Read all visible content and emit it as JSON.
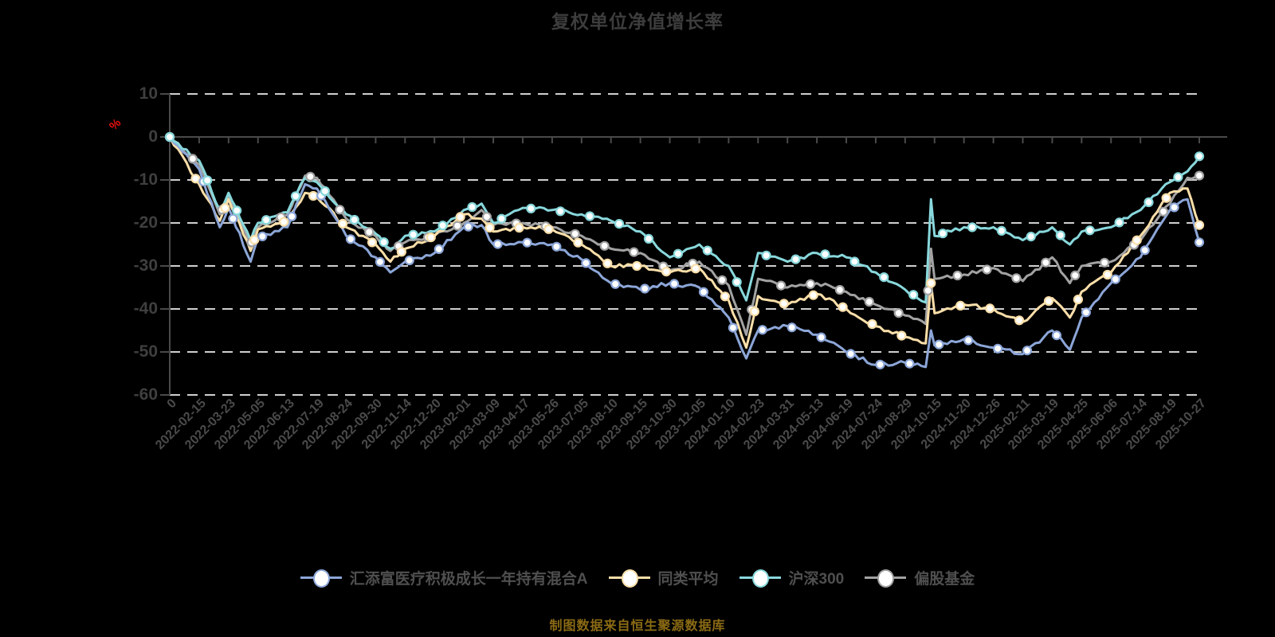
{
  "title": "复权单位净值增长率",
  "caption": "制图数据来自恒生聚源数据库",
  "colors": {
    "background": "#000000",
    "title": "#3d3d3d",
    "axis": "#4a4a4a",
    "grid": "#cfcfcf",
    "y_label": "#3f3f3f",
    "x_label": "#4a4a4a",
    "legend_text": "#4f4f4f",
    "caption": "#8a6a14",
    "unit": "#ee1111",
    "marker_fill": "#ffffff"
  },
  "y_axis": {
    "unit_label": "%",
    "ticks": [
      10,
      0,
      -10,
      -20,
      -30,
      -40,
      -50,
      -60
    ],
    "min": -60,
    "max": 10
  },
  "x_axis": {
    "labels": [
      "0",
      "2022-02-15",
      "2022-03-23",
      "2022-05-05",
      "2022-06-13",
      "2022-07-19",
      "2022-08-24",
      "2022-09-30",
      "2022-11-14",
      "2022-12-20",
      "2023-02-01",
      "2023-03-09",
      "2023-04-17",
      "2023-05-26",
      "2023-07-05",
      "2023-08-10",
      "2023-09-15",
      "2023-10-30",
      "2023-12-05",
      "2024-01-10",
      "2024-02-23",
      "2024-03-31",
      "2024-05-13",
      "2024-06-19",
      "2024-07-24",
      "2024-08-29",
      "2024-10-15",
      "2024-11-20",
      "2024-12-26",
      "2025-02-11",
      "2025-03-19",
      "2025-04-25",
      "2025-06-06",
      "2025-07-14",
      "2025-08-19",
      "2025-10-27"
    ]
  },
  "legend": [
    {
      "id": "fund",
      "label": "汇添富医疗积极成长一年持有混合A",
      "color": "#8ca6d8"
    },
    {
      "id": "peer",
      "label": "同类平均",
      "color": "#fbdfa9"
    },
    {
      "id": "hs300",
      "label": "沪深300",
      "color": "#88d8dc"
    },
    {
      "id": "stockfund",
      "label": "偏股基金",
      "color": "#a2a2a2"
    }
  ],
  "chart_data": {
    "type": "line",
    "title": "复权单位净值增长率",
    "ylabel": "%",
    "ylim": [
      -60,
      10
    ],
    "grid": true,
    "legend_position": "bottom",
    "categories": [
      "0",
      "2022-02-15",
      "2022-03-23",
      "2022-05-05",
      "2022-06-13",
      "2022-07-19",
      "2022-08-24",
      "2022-09-30",
      "2022-11-14",
      "2022-12-20",
      "2023-02-01",
      "2023-03-09",
      "2023-04-17",
      "2023-05-26",
      "2023-07-05",
      "2023-08-10",
      "2023-09-15",
      "2023-10-30",
      "2023-12-05",
      "2024-01-10",
      "2024-02-23",
      "2024-03-31",
      "2024-05-13",
      "2024-06-19",
      "2024-07-24",
      "2024-08-29",
      "2024-10-15",
      "2024-11-20",
      "2024-12-26",
      "2025-02-11",
      "2025-03-19",
      "2025-04-25",
      "2025-06-06",
      "2025-07-14",
      "2025-08-19",
      "2025-10-27"
    ],
    "series": [
      {
        "id": "fund",
        "name": "汇添富医疗积极成长一年持有混合A",
        "color": "#8ca6d8",
        "points": [
          [
            0,
            0
          ],
          [
            1,
            -7.5
          ],
          [
            1.7,
            -21
          ],
          [
            2,
            -16.5
          ],
          [
            2.75,
            -29
          ],
          [
            3,
            -23.5
          ],
          [
            4,
            -21
          ],
          [
            4.6,
            -11
          ],
          [
            5,
            -12
          ],
          [
            6,
            -23
          ],
          [
            7,
            -28
          ],
          [
            7.5,
            -31.5
          ],
          [
            8,
            -29
          ],
          [
            9,
            -27
          ],
          [
            10,
            -21
          ],
          [
            10.6,
            -20.5
          ],
          [
            11,
            -25
          ],
          [
            12,
            -24.5
          ],
          [
            13,
            -25
          ],
          [
            14,
            -28.5
          ],
          [
            15,
            -34
          ],
          [
            16,
            -35.5
          ],
          [
            17,
            -34
          ],
          [
            18,
            -35
          ],
          [
            19,
            -42
          ],
          [
            19.6,
            -51.5
          ],
          [
            20,
            -45
          ],
          [
            21,
            -44
          ],
          [
            22,
            -46
          ],
          [
            23,
            -50
          ],
          [
            24,
            -53
          ],
          [
            25,
            -52.5
          ],
          [
            25.7,
            -53.5
          ],
          [
            25.88,
            -45
          ],
          [
            26,
            -48.5
          ],
          [
            27,
            -47
          ],
          [
            28,
            -49
          ],
          [
            29,
            -50.5
          ],
          [
            30,
            -45
          ],
          [
            30.6,
            -49.5
          ],
          [
            31,
            -42
          ],
          [
            32,
            -34
          ],
          [
            33,
            -28
          ],
          [
            34,
            -17
          ],
          [
            34.6,
            -14.5
          ],
          [
            35,
            -24.5
          ]
        ]
      },
      {
        "id": "peer",
        "name": "同类平均",
        "color": "#fbdfa9",
        "points": [
          [
            0,
            0
          ],
          [
            1,
            -11
          ],
          [
            1.7,
            -19.5
          ],
          [
            2,
            -14.5
          ],
          [
            2.75,
            -26.5
          ],
          [
            3,
            -21.5
          ],
          [
            4,
            -19.5
          ],
          [
            4.6,
            -13
          ],
          [
            5,
            -14
          ],
          [
            6,
            -21
          ],
          [
            7,
            -25
          ],
          [
            7.5,
            -29
          ],
          [
            8,
            -26
          ],
          [
            9,
            -23
          ],
          [
            10,
            -18
          ],
          [
            10.6,
            -19
          ],
          [
            11,
            -22
          ],
          [
            12,
            -21
          ],
          [
            13,
            -21.5
          ],
          [
            14,
            -25
          ],
          [
            15,
            -30
          ],
          [
            16,
            -30
          ],
          [
            17,
            -31.5
          ],
          [
            18,
            -30.5
          ],
          [
            19,
            -38
          ],
          [
            19.6,
            -49
          ],
          [
            20,
            -37
          ],
          [
            21,
            -39
          ],
          [
            22,
            -36.5
          ],
          [
            23,
            -40
          ],
          [
            24,
            -44
          ],
          [
            25,
            -46.5
          ],
          [
            25.7,
            -48
          ],
          [
            25.88,
            -34
          ],
          [
            26,
            -41
          ],
          [
            27,
            -39
          ],
          [
            28,
            -40
          ],
          [
            29,
            -43
          ],
          [
            30,
            -37.5
          ],
          [
            30.6,
            -42
          ],
          [
            31,
            -36
          ],
          [
            32,
            -31.5
          ],
          [
            33,
            -23
          ],
          [
            34,
            -13
          ],
          [
            34.6,
            -12
          ],
          [
            35,
            -20.5
          ]
        ]
      },
      {
        "id": "hs300",
        "name": "沪深300",
        "color": "#88d8dc",
        "points": [
          [
            0,
            0
          ],
          [
            1,
            -5.5
          ],
          [
            1.7,
            -17
          ],
          [
            2,
            -13
          ],
          [
            2.75,
            -24
          ],
          [
            3,
            -20
          ],
          [
            4,
            -17.5
          ],
          [
            4.6,
            -9.5
          ],
          [
            5,
            -10.5
          ],
          [
            6,
            -18
          ],
          [
            7,
            -22.5
          ],
          [
            7.5,
            -26
          ],
          [
            8,
            -23
          ],
          [
            9,
            -22
          ],
          [
            10,
            -17
          ],
          [
            10.6,
            -15.5
          ],
          [
            11,
            -20
          ],
          [
            12,
            -16.5
          ],
          [
            13,
            -17
          ],
          [
            14,
            -18
          ],
          [
            15,
            -19.5
          ],
          [
            16,
            -22
          ],
          [
            17,
            -28
          ],
          [
            18,
            -25
          ],
          [
            19,
            -30
          ],
          [
            19.6,
            -38
          ],
          [
            20,
            -27
          ],
          [
            21,
            -29
          ],
          [
            22,
            -27
          ],
          [
            23,
            -28
          ],
          [
            24,
            -31.5
          ],
          [
            25,
            -35.5
          ],
          [
            25.7,
            -38.5
          ],
          [
            25.88,
            -14.5
          ],
          [
            26,
            -23
          ],
          [
            27,
            -21
          ],
          [
            28,
            -21
          ],
          [
            29,
            -24
          ],
          [
            30,
            -21
          ],
          [
            30.6,
            -25
          ],
          [
            31,
            -22
          ],
          [
            32,
            -21
          ],
          [
            33,
            -17
          ],
          [
            34,
            -10.5
          ],
          [
            34.6,
            -8
          ],
          [
            35,
            -4.5
          ]
        ]
      },
      {
        "id": "stockfund",
        "name": "偏股基金",
        "color": "#a2a2a2",
        "points": [
          [
            0,
            0
          ],
          [
            1,
            -6.5
          ],
          [
            1.7,
            -18
          ],
          [
            2,
            -14
          ],
          [
            2.75,
            -25
          ],
          [
            3,
            -21
          ],
          [
            4,
            -18
          ],
          [
            4.6,
            -9
          ],
          [
            5,
            -9.5
          ],
          [
            6,
            -19
          ],
          [
            7,
            -23
          ],
          [
            7.5,
            -26.5
          ],
          [
            8,
            -24.5
          ],
          [
            9,
            -23
          ],
          [
            10,
            -20
          ],
          [
            10.6,
            -17
          ],
          [
            11,
            -20.5
          ],
          [
            12,
            -20
          ],
          [
            13,
            -21
          ],
          [
            14,
            -23
          ],
          [
            15,
            -26
          ],
          [
            16,
            -27
          ],
          [
            17,
            -31
          ],
          [
            18,
            -29
          ],
          [
            19,
            -34.5
          ],
          [
            19.6,
            -46
          ],
          [
            20,
            -33
          ],
          [
            21,
            -35
          ],
          [
            22,
            -34
          ],
          [
            23,
            -36
          ],
          [
            24,
            -39
          ],
          [
            25,
            -41.5
          ],
          [
            25.7,
            -43.5
          ],
          [
            25.88,
            -26
          ],
          [
            26,
            -33
          ],
          [
            27,
            -32
          ],
          [
            28,
            -30.5
          ],
          [
            29,
            -33.5
          ],
          [
            30,
            -28
          ],
          [
            30.6,
            -34
          ],
          [
            31,
            -30
          ],
          [
            32,
            -29
          ],
          [
            33,
            -24
          ],
          [
            34,
            -15.5
          ],
          [
            34.6,
            -9.5
          ],
          [
            35,
            -9
          ]
        ]
      }
    ]
  }
}
